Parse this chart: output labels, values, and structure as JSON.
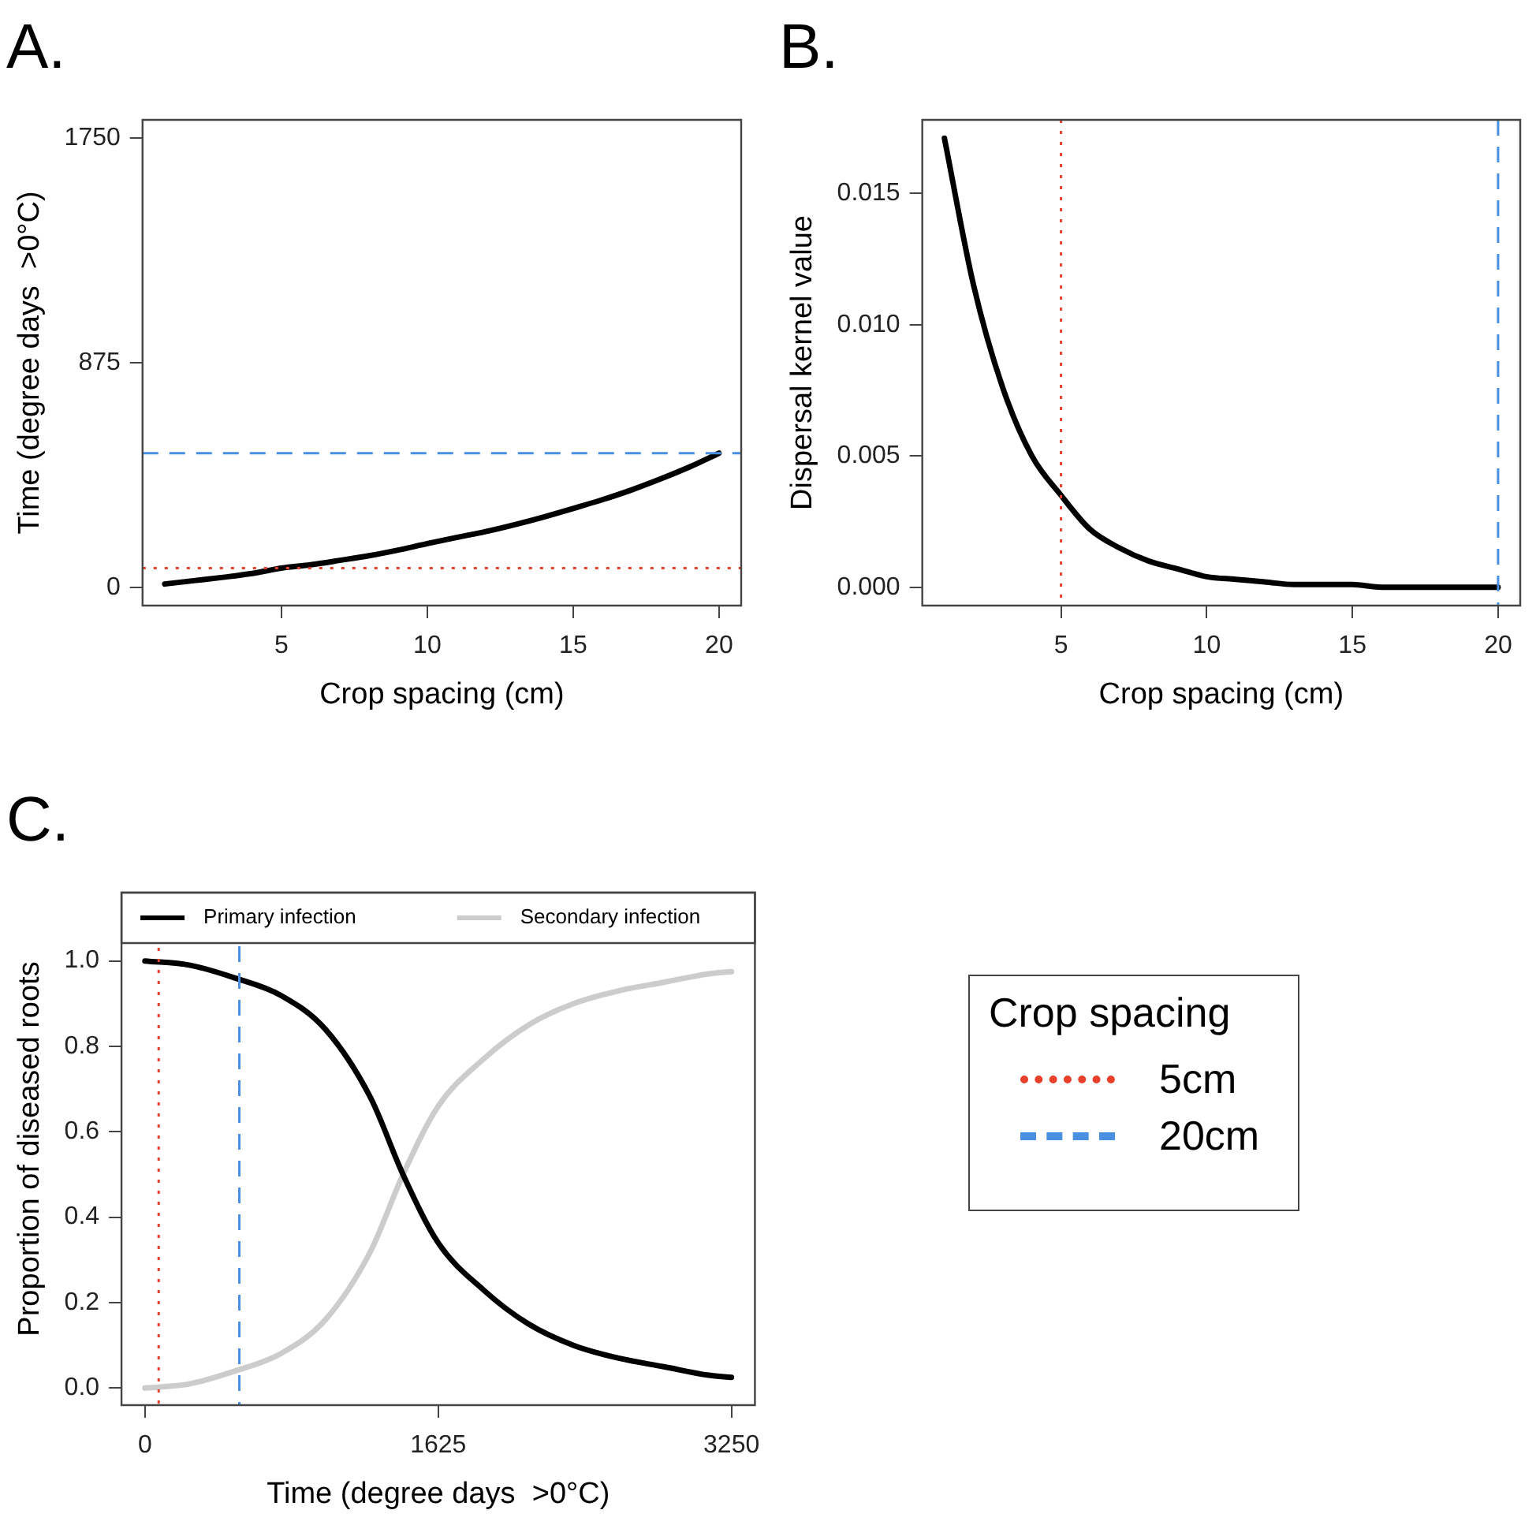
{
  "chart_data": [
    {
      "type": "line",
      "title": "A.",
      "xlabel": "Crop spacing (cm)",
      "ylabel": "Time (degree days  >0°C)",
      "x": [
        1,
        2,
        3,
        4,
        5,
        6,
        7,
        8,
        9,
        10,
        11,
        12,
        13,
        14,
        15,
        16,
        17,
        18,
        19,
        20
      ],
      "series": [
        {
          "color": "#000000",
          "values": [
            14,
            27,
            40,
            55,
            76,
            89,
            106,
            124,
            146,
            171,
            195,
            218,
            245,
            275,
            308,
            342,
            380,
            423,
            470,
            523
          ]
        }
      ],
      "xlim": [
        0.24,
        20.76
      ],
      "xticks": [
        5,
        10,
        15,
        20
      ],
      "ylim": [
        -70,
        1820
      ],
      "yticks": [
        0,
        875,
        1750
      ],
      "ref_lines": [
        {
          "axis": "y",
          "value": 76,
          "color": "#e8402a",
          "line_style": "dotted"
        },
        {
          "axis": "y",
          "value": 523,
          "color": "#4a90e2",
          "line_style": "dashed"
        }
      ],
      "grid": false,
      "legend": false,
      "marker": "none",
      "line_style": "solid"
    },
    {
      "type": "line",
      "title": "B.",
      "xlabel": "Crop spacing (cm)",
      "ylabel": "Dispersal kernel value",
      "x": [
        1,
        2,
        3,
        4,
        5,
        6,
        7,
        8,
        9,
        10,
        11,
        12,
        13,
        14,
        15,
        16,
        17,
        18,
        19,
        20
      ],
      "series": [
        {
          "color": "#000000",
          "values": [
            0.0171,
            0.0115,
            0.0076,
            0.005,
            0.0035,
            0.0022,
            0.0015,
            0.001,
            0.0007,
            0.0004,
            0.0003,
            0.0002,
            0.0001,
            0.0001,
            0.0001,
            0,
            0,
            0,
            0,
            0
          ]
        }
      ],
      "xlim": [
        0.24,
        20.76
      ],
      "xticks": [
        5,
        10,
        15,
        20
      ],
      "ylim": [
        -0.0007,
        0.0178
      ],
      "yticks": [
        {
          "value": 0,
          "label": "0.000"
        },
        0.005,
        {
          "value": 0.01,
          "label": "0.010"
        },
        0.015
      ],
      "ref_lines": [
        {
          "axis": "x",
          "value": 5,
          "color": "#e8402a",
          "line_style": "dotted"
        },
        {
          "axis": "x",
          "value": 20,
          "color": "#4a90e2",
          "line_style": "dashed"
        }
      ],
      "grid": false,
      "legend": false,
      "marker": "none",
      "line_style": "solid"
    },
    {
      "type": "line",
      "title": "C.",
      "xlabel": "Time (degree days  >0°C)",
      "ylabel": "Proportion of diseased roots",
      "x": [
        0,
        250,
        500,
        750,
        1000,
        1250,
        1430,
        1625,
        1875,
        2125,
        2375,
        2625,
        2875,
        3125,
        3250
      ],
      "series": [
        {
          "name": "Primary infection",
          "color": "#000000",
          "values": [
            1.0,
            0.99,
            0.96,
            0.92,
            0.84,
            0.68,
            0.5,
            0.34,
            0.23,
            0.15,
            0.1,
            0.07,
            0.05,
            0.03,
            0.025
          ]
        },
        {
          "name": "Secondary infection",
          "color": "#cccccc",
          "values": [
            0.0,
            0.01,
            0.04,
            0.08,
            0.16,
            0.32,
            0.5,
            0.66,
            0.77,
            0.85,
            0.9,
            0.93,
            0.95,
            0.97,
            0.975
          ]
        }
      ],
      "xlim": [
        -130,
        3380
      ],
      "xticks": [
        0,
        1625,
        3250
      ],
      "ylim": [
        -0.04,
        1.16
      ],
      "yticks": [
        {
          "value": 0,
          "label": "0.0"
        },
        0.2,
        0.4,
        0.6,
        0.8,
        {
          "value": 1,
          "label": "1.0"
        }
      ],
      "ref_lines": [
        {
          "axis": "x",
          "value": 76,
          "color": "#e8402a",
          "line_style": "dotted"
        },
        {
          "axis": "x",
          "value": 523,
          "color": "#4a90e2",
          "line_style": "dashed"
        }
      ],
      "grid": false,
      "legend": "top",
      "marker": "none",
      "line_style": "solid"
    },
    {
      "type": "other",
      "title": "Crop spacing",
      "annotations": [
        "5cm",
        "20cm"
      ]
    }
  ]
}
